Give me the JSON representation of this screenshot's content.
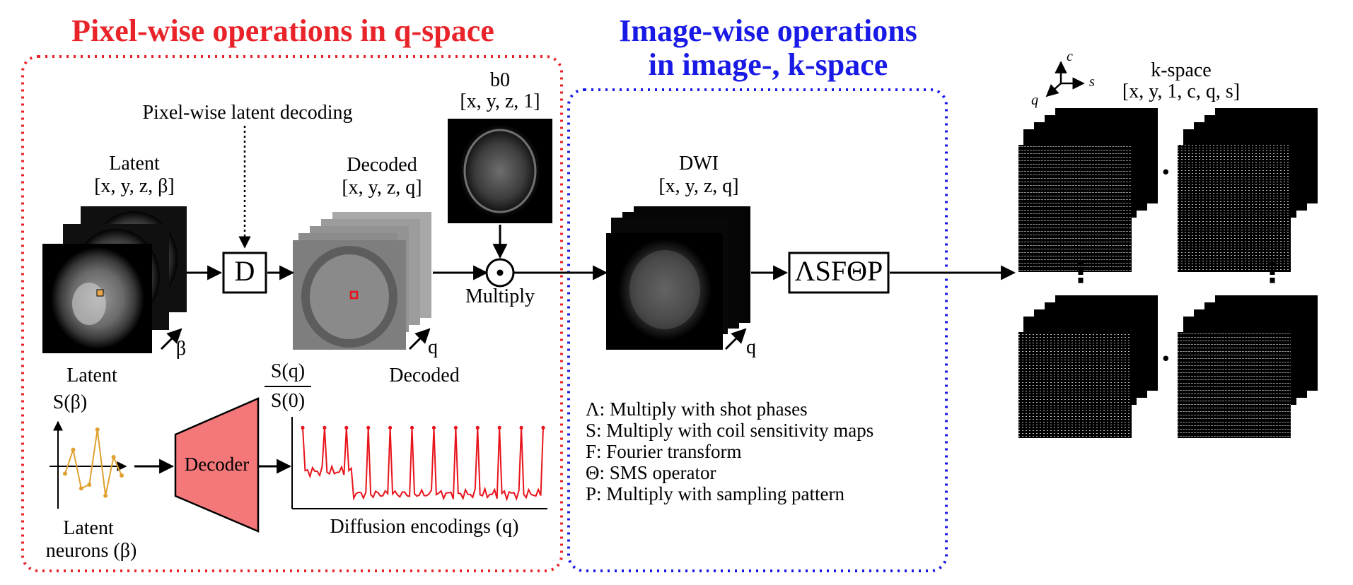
{
  "colors": {
    "red": "#e8242a",
    "blue": "#1a1ae6",
    "decoder_fill": "#f4787a",
    "signal": "#e8141c",
    "latent_curve": "#e0a030",
    "marker_orange": "#e8a84a"
  },
  "sections": {
    "left_title": "Pixel-wise operations in q-space",
    "mid_title_line1": "Image-wise operations",
    "mid_title_line2": "in image-, k-space"
  },
  "labels": {
    "pixel_wise_decoding": "Pixel-wise latent decoding",
    "latent_title": "Latent",
    "latent_dims": "[x, y, z, β]",
    "beta_axis": "β",
    "d_box": "D",
    "decoded_title": "Decoded",
    "decoded_dims": "[x, y, z, q]",
    "q_axis_decoded": "q",
    "b0_title": "b0",
    "b0_dims": "[x, y, z, 1]",
    "multiply": "Multiply",
    "dwi_title": "DWI",
    "dwi_dims": "[x, y, z, q]",
    "q_axis_dwi": "q",
    "operator_box": "ΛSFΘP",
    "kspace_title": "k-space",
    "kspace_dims": "[x, y, 1, c, q, s]",
    "axis_c": "c",
    "axis_s": "s",
    "axis_q": "q",
    "ellipsis_h": "•••",
    "ellipsis_v": "⋮",
    "decoded_sub": "Decoded",
    "latent_sub": "Latent",
    "s_beta": "S(β)",
    "latent_neurons_1": "Latent",
    "latent_neurons_2": "neurons (β)",
    "decoder": "Decoder",
    "frac_num": "S(q)",
    "frac_den": "S(0)",
    "diffusion_encodings": "Diffusion encodings (q)"
  },
  "legend": [
    "Λ: Multiply with shot phases",
    "S: Multiply with coil sensitivity maps",
    "F: Fourier transform",
    "Θ: SMS operator",
    "P: Multiply with sampling pattern"
  ],
  "chart_data": [
    {
      "type": "line",
      "name": "latent-neurons-plot",
      "x": [
        1,
        2,
        3,
        4,
        5,
        6,
        7,
        8
      ],
      "values": [
        -0.2,
        0.45,
        -0.6,
        -0.5,
        1.0,
        -0.8,
        0.25,
        -0.25
      ],
      "xlabel": "Latent neurons (β)",
      "ylabel": "S(β)",
      "ylim": [
        -1.2,
        1.2
      ]
    },
    {
      "type": "line",
      "name": "decoded-signal-plot",
      "xlabel": "Diffusion encodings (q)",
      "ylabel": "S(q)/S(0)",
      "x_count": 100,
      "peak_indices": [
        0,
        9,
        18,
        27,
        36,
        45,
        54,
        63,
        72,
        81,
        90,
        99
      ],
      "peak_value": 1.0,
      "baseline_early": 0.42,
      "baseline_late": 0.12,
      "break_index": 21,
      "ylim": [
        0,
        1.05
      ]
    }
  ]
}
